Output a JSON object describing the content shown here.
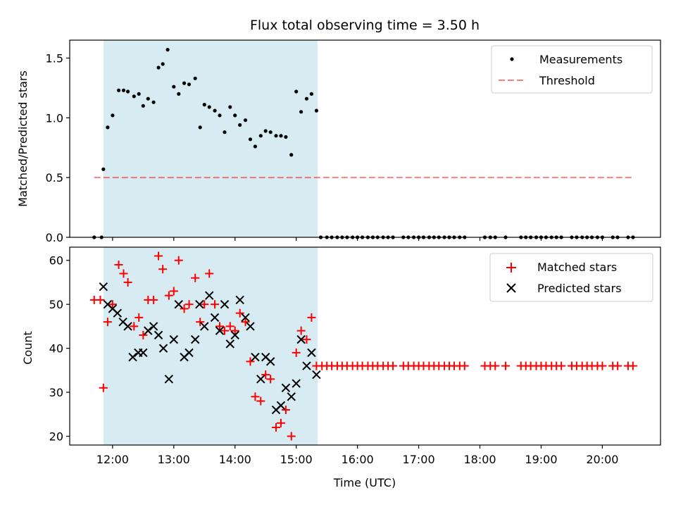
{
  "colors": {
    "shade": "#add8e6",
    "matched": "#ff0000",
    "predicted": "#000000",
    "threshold": "#ff0000",
    "measurement": "#000000"
  },
  "chart_data": [
    {
      "type": "scatter",
      "title": "Flux total observing time = 3.50 h",
      "xlabel": "",
      "ylabel": "Matched/Predicted stars",
      "ylim": [
        0,
        1.65
      ],
      "xlim_hours": [
        11.3,
        20.95
      ],
      "yticks": [
        0.0,
        0.5,
        1.0,
        1.5
      ],
      "ytick_labels": [
        "0.0",
        "0.5",
        "1.0",
        "1.5"
      ],
      "shaded_region_hours": [
        11.85,
        15.35
      ],
      "legend": {
        "placement": "top-right",
        "entries": [
          "Measurements",
          "Threshold"
        ]
      },
      "threshold": {
        "name": "Threshold",
        "value": 0.5,
        "x_range_hours": [
          11.7,
          20.5
        ]
      },
      "series": [
        {
          "name": "Measurements",
          "x_hours": [
            11.7,
            11.82,
            11.85,
            11.92,
            12.0,
            12.1,
            12.18,
            12.25,
            12.35,
            12.43,
            12.5,
            12.58,
            12.67,
            12.75,
            12.82,
            12.9,
            13.0,
            13.08,
            13.17,
            13.25,
            13.35,
            13.43,
            13.5,
            13.58,
            13.67,
            13.75,
            13.83,
            13.92,
            14.0,
            14.08,
            14.17,
            14.25,
            14.33,
            14.42,
            14.5,
            14.58,
            14.67,
            14.75,
            14.83,
            14.92,
            15.0,
            15.08,
            15.17,
            15.25,
            15.33,
            15.4,
            15.5,
            15.58,
            15.67,
            15.75,
            15.83,
            15.92,
            16.0,
            16.08,
            16.17,
            16.25,
            16.33,
            16.42,
            16.5,
            16.58,
            16.75,
            16.83,
            16.92,
            17.0,
            17.08,
            17.17,
            17.25,
            17.33,
            17.42,
            17.5,
            17.58,
            17.67,
            17.75,
            18.08,
            18.17,
            18.25,
            18.42,
            18.67,
            18.75,
            18.83,
            18.92,
            19.0,
            19.08,
            19.17,
            19.25,
            19.33,
            19.5,
            19.58,
            19.67,
            19.75,
            19.83,
            19.92,
            20.0,
            20.17,
            20.25,
            20.42,
            20.5
          ],
          "y": [
            0.0,
            0.0,
            0.57,
            0.92,
            1.02,
            1.23,
            1.23,
            1.22,
            1.18,
            1.2,
            1.1,
            1.16,
            1.13,
            1.42,
            1.45,
            1.57,
            1.26,
            1.2,
            1.29,
            1.28,
            1.33,
            0.92,
            1.11,
            1.09,
            1.06,
            1.02,
            0.88,
            1.09,
            1.02,
            0.94,
            0.98,
            0.82,
            0.76,
            0.85,
            0.89,
            0.88,
            0.85,
            0.85,
            0.84,
            0.69,
            1.22,
            1.05,
            1.16,
            1.2,
            1.06,
            0.0,
            0.0,
            0.0,
            0.0,
            0.0,
            0.0,
            0.0,
            0.0,
            0.0,
            0.0,
            0.0,
            0.0,
            0.0,
            0.0,
            0.0,
            0.0,
            0.0,
            0.0,
            0.0,
            0.0,
            0.0,
            0.0,
            0.0,
            0.0,
            0.0,
            0.0,
            0.0,
            0.0,
            0.0,
            0.0,
            0.0,
            0.0,
            0.0,
            0.0,
            0.0,
            0.0,
            0.0,
            0.0,
            0.0,
            0.0,
            0.0,
            0.0,
            0.0,
            0.0,
            0.0,
            0.0,
            0.0,
            0.0,
            0.0,
            0.0,
            0.0,
            0.0
          ]
        }
      ]
    },
    {
      "type": "scatter",
      "title": "",
      "xlabel": "Time (UTC)",
      "ylabel": "Count",
      "ylim": [
        18,
        63
      ],
      "xlim_hours": [
        11.3,
        20.95
      ],
      "yticks": [
        20,
        30,
        40,
        50,
        60
      ],
      "ytick_labels": [
        "20",
        "30",
        "40",
        "50",
        "60"
      ],
      "xticks_hours": [
        12,
        13,
        14,
        15,
        16,
        17,
        18,
        19,
        20
      ],
      "xtick_labels": [
        "12:00",
        "13:00",
        "14:00",
        "15:00",
        "16:00",
        "17:00",
        "18:00",
        "19:00",
        "20:00"
      ],
      "shaded_region_hours": [
        11.85,
        15.35
      ],
      "legend": {
        "placement": "top-right",
        "entries": [
          "Matched stars",
          "Predicted stars"
        ]
      },
      "series": [
        {
          "name": "Matched stars",
          "marker": "plus",
          "x_hours": [
            11.7,
            11.8,
            11.85,
            11.92,
            12.0,
            12.1,
            12.18,
            12.25,
            12.35,
            12.43,
            12.5,
            12.58,
            12.67,
            12.75,
            12.82,
            12.92,
            13.0,
            13.08,
            13.17,
            13.25,
            13.35,
            13.43,
            13.5,
            13.58,
            13.67,
            13.75,
            13.83,
            13.92,
            14.0,
            14.08,
            14.17,
            14.25,
            14.33,
            14.42,
            14.5,
            14.58,
            14.67,
            14.75,
            14.83,
            14.92,
            15.0,
            15.08,
            15.17,
            15.25,
            15.33,
            15.42,
            15.5,
            15.58,
            15.67,
            15.75,
            15.83,
            15.92,
            16.0,
            16.08,
            16.17,
            16.25,
            16.33,
            16.42,
            16.5,
            16.58,
            16.75,
            16.83,
            16.92,
            17.0,
            17.08,
            17.17,
            17.25,
            17.33,
            17.42,
            17.5,
            17.58,
            17.67,
            17.75,
            18.08,
            18.17,
            18.25,
            18.42,
            18.67,
            18.75,
            18.83,
            18.92,
            19.0,
            19.08,
            19.17,
            19.25,
            19.33,
            19.5,
            19.58,
            19.67,
            19.75,
            19.83,
            19.92,
            20.0,
            20.17,
            20.25,
            20.42,
            20.5
          ],
          "y": [
            51,
            51,
            31,
            46,
            50,
            59,
            57,
            55,
            45,
            47,
            43,
            51,
            51,
            61,
            58,
            52,
            53,
            60,
            49,
            50,
            56,
            46,
            50,
            57,
            50,
            45,
            44,
            45,
            44,
            48,
            46,
            37,
            29,
            28,
            34,
            33,
            22,
            23,
            26,
            20,
            39,
            44,
            42,
            47,
            36,
            36,
            36,
            36,
            36,
            36,
            36,
            36,
            36,
            36,
            36,
            36,
            36,
            36,
            36,
            36,
            36,
            36,
            36,
            36,
            36,
            36,
            36,
            36,
            36,
            36,
            36,
            36,
            36,
            36,
            36,
            36,
            36,
            36,
            36,
            36,
            36,
            36,
            36,
            36,
            36,
            36,
            36,
            36,
            36,
            36,
            36,
            36,
            36,
            36,
            36,
            36,
            36
          ]
        },
        {
          "name": "Predicted stars",
          "marker": "x",
          "x_hours": [
            11.85,
            11.92,
            12.0,
            12.08,
            12.17,
            12.25,
            12.33,
            12.42,
            12.5,
            12.58,
            12.67,
            12.75,
            12.83,
            12.92,
            13.0,
            13.08,
            13.17,
            13.25,
            13.35,
            13.42,
            13.5,
            13.58,
            13.67,
            13.75,
            13.83,
            13.92,
            14.0,
            14.08,
            14.17,
            14.25,
            14.33,
            14.42,
            14.5,
            14.58,
            14.67,
            14.75,
            14.83,
            14.92,
            15.0,
            15.08,
            15.17,
            15.25,
            15.33
          ],
          "y": [
            54,
            50,
            49,
            48,
            46,
            45,
            38,
            39,
            39,
            44,
            45,
            43,
            40,
            33,
            42,
            50,
            38,
            39,
            42,
            50,
            45,
            52,
            47,
            44,
            50,
            41,
            43,
            51,
            47,
            45,
            38,
            33,
            38,
            37,
            26,
            27,
            31,
            29,
            32,
            42,
            36,
            39,
            34
          ]
        }
      ]
    }
  ]
}
